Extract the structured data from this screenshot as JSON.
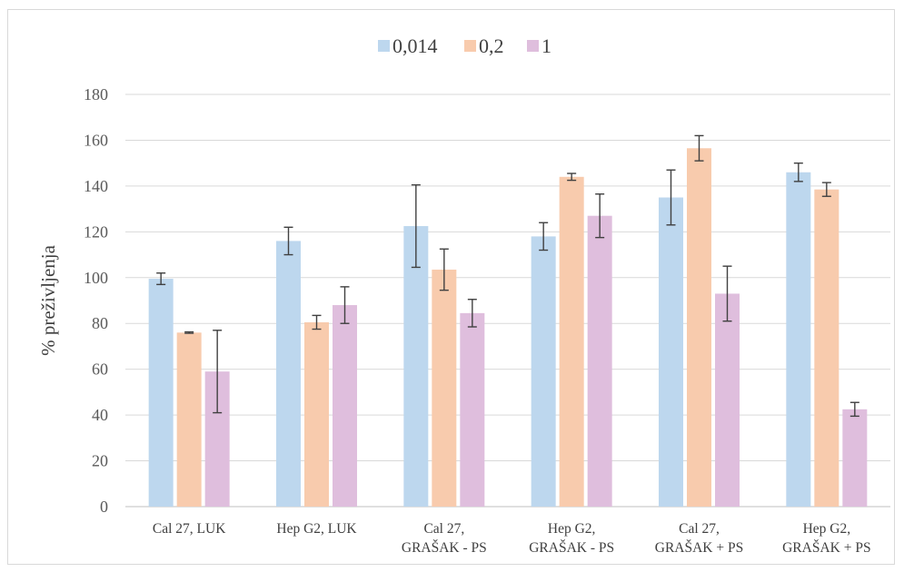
{
  "chart_data": {
    "type": "bar",
    "title": "",
    "xlabel": "",
    "ylabel": "% preživljenja",
    "ylim": [
      0,
      180
    ],
    "yticks": [
      0,
      20,
      40,
      60,
      80,
      100,
      120,
      140,
      160,
      180
    ],
    "grid": true,
    "legend_position": "top-center",
    "categories": [
      [
        "Cal 27, LUK"
      ],
      [
        "Hep G2, LUK"
      ],
      [
        "Cal 27,",
        "GRAŠAK - PS"
      ],
      [
        "Hep G2,",
        "GRAŠAK - PS"
      ],
      [
        "Cal 27,",
        "GRAŠAK + PS"
      ],
      [
        "Hep G2,",
        "GRAŠAK + PS"
      ]
    ],
    "series": [
      {
        "name": "0,014",
        "color": "#bdd7ee",
        "values": [
          99.5,
          116,
          122.5,
          118,
          135,
          146
        ],
        "errors": [
          2.5,
          6,
          18,
          6,
          12,
          4
        ]
      },
      {
        "name": "0,2",
        "color": "#f8cbad",
        "values": [
          76,
          80.5,
          103.5,
          144,
          156.5,
          138.5
        ],
        "errors": [
          0.3,
          3,
          9,
          1.5,
          5.5,
          3
        ]
      },
      {
        "name": "1",
        "color": "#dfbedd",
        "values": [
          59,
          88,
          84.5,
          127,
          93,
          42.5
        ],
        "errors": [
          18,
          8,
          6,
          9.5,
          12,
          3
        ]
      }
    ]
  }
}
